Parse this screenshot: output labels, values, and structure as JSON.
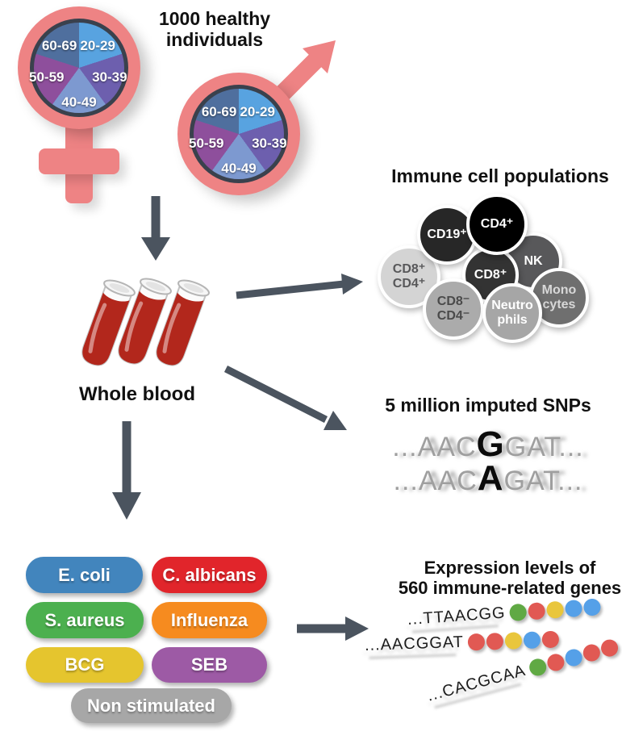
{
  "headline": {
    "lines": [
      "1000 healthy",
      "individuals"
    ]
  },
  "colors": {
    "pink": "#ee8384",
    "arrow": "#4b545f",
    "pie_ring": "#3a414d",
    "blood_red": "#b2271c"
  },
  "age_pie": {
    "slices": [
      {
        "label": "20-29",
        "color": "#58a3e0"
      },
      {
        "label": "30-39",
        "color": "#6d5fae"
      },
      {
        "label": "40-49",
        "color": "#7d99d0"
      },
      {
        "label": "50-59",
        "color": "#8e4f9c"
      },
      {
        "label": "60-69",
        "color": "#4f6f9e"
      }
    ]
  },
  "whole_blood": {
    "label": "Whole blood"
  },
  "immune": {
    "title": "Immune cell populations",
    "cells": [
      {
        "id": "cd8p-cd4p",
        "lines": [
          "CD8⁺",
          "CD4⁺"
        ],
        "bg": "#d4d4d4",
        "fg": "#58585a"
      },
      {
        "id": "cd19p",
        "lines": [
          "CD19⁺"
        ],
        "bg": "#272727",
        "fg": "#ffffff"
      },
      {
        "id": "nk",
        "lines": [
          "NK"
        ],
        "bg": "#58585a",
        "fg": "#ffffff"
      },
      {
        "id": "cd8p",
        "lines": [
          "CD8⁺"
        ],
        "bg": "#333333",
        "fg": "#ffffff"
      },
      {
        "id": "cd4p",
        "lines": [
          "CD4⁺"
        ],
        "bg": "#000000",
        "fg": "#ffffff"
      },
      {
        "id": "cd8m-cd4m",
        "lines": [
          "CD8⁻",
          "CD4⁻"
        ],
        "bg": "#ababab",
        "fg": "#4a4a4a"
      },
      {
        "id": "monocytes",
        "lines": [
          "Mono",
          "cytes"
        ],
        "bg": "#6f6f6f",
        "fg": "#d8d8d8"
      },
      {
        "id": "neutrophils",
        "lines": [
          "Neutro",
          "phils"
        ],
        "bg": "#a6a6a6",
        "fg": "#ffffff"
      }
    ]
  },
  "snps": {
    "title": "5 million imputed SNPs",
    "sequences": [
      {
        "prefix": "...AAC",
        "allele": "G",
        "suffix": "GAT..."
      },
      {
        "prefix": "...AAC",
        "allele": "A",
        "suffix": "GAT..."
      }
    ]
  },
  "stimuli": {
    "items": [
      {
        "label": "E. coli",
        "color": "#4285bd"
      },
      {
        "label": "C. albicans",
        "color": "#e1252b"
      },
      {
        "label": "S. aureus",
        "color": "#4cb04f"
      },
      {
        "label": "Influenza",
        "color": "#f68b1f"
      },
      {
        "label": "BCG",
        "color": "#e5c52e"
      },
      {
        "label": "SEB",
        "color": "#9d5aa5"
      },
      {
        "label": "Non stimulated",
        "color": "#a7a7a7"
      }
    ]
  },
  "expression": {
    "title_lines": [
      "Expression levels of",
      "560 immune-related genes"
    ],
    "dot_colors": {
      "green": "#60a944",
      "red": "#e15953",
      "yellow": "#e9c63c",
      "blue": "#55a0e8"
    },
    "rows": [
      {
        "seq": "...TTAACGG",
        "dots": [
          "green",
          "red",
          "yellow",
          "blue",
          "blue"
        ]
      },
      {
        "seq": "...AACGGAT",
        "dots": [
          "red",
          "red",
          "yellow",
          "blue",
          "red"
        ]
      },
      {
        "seq": "...CACGCAA",
        "dots": [
          "green",
          "red",
          "blue",
          "red",
          "red"
        ]
      }
    ]
  }
}
